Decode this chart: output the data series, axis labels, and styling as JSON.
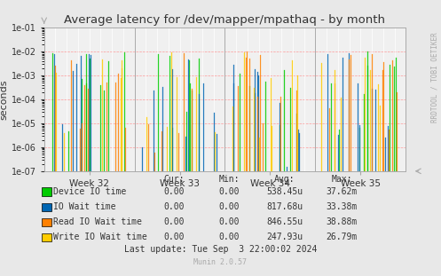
{
  "title": "Average latency for /dev/mapper/mpathaq - by month",
  "ylabel": "seconds",
  "background_color": "#e8e8e8",
  "plot_bg_color": "#f0f0f0",
  "grid_color": "#ffffff",
  "title_color": "#333333",
  "watermark": "RRDTOOL / TOBI OETIKER",
  "munin_version": "Munin 2.0.57",
  "week_labels": [
    "Week 32",
    "Week 33",
    "Week 34",
    "Week 35"
  ],
  "ymin": 1e-07,
  "ymax": 0.1,
  "legend": [
    {
      "label": "Device IO time",
      "color": "#00cc00"
    },
    {
      "label": "IO Wait time",
      "color": "#0066b3"
    },
    {
      "label": "Read IO Wait time",
      "color": "#ff8000"
    },
    {
      "label": "Write IO Wait time",
      "color": "#ffcc00"
    }
  ],
  "legend_table": {
    "headers": [
      "Cur:",
      "Min:",
      "Avg:",
      "Max:"
    ],
    "rows": [
      [
        "0.00",
        "0.00",
        "538.45u",
        "37.62m"
      ],
      [
        "0.00",
        "0.00",
        "817.68u",
        "33.38m"
      ],
      [
        "0.00",
        "0.00",
        "846.55u",
        "38.88m"
      ],
      [
        "0.00",
        "0.00",
        "247.93u",
        "26.79m"
      ]
    ]
  },
  "last_update": "Last update: Tue Sep  3 22:00:02 2024"
}
